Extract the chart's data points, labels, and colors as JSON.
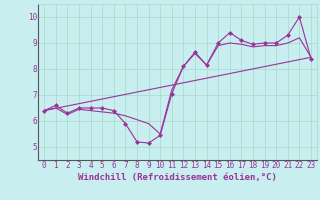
{
  "xlabel": "Windchill (Refroidissement éolien,°C)",
  "background_color": "#c8eef0",
  "line_color": "#993399",
  "xlim": [
    -0.5,
    23.5
  ],
  "ylim": [
    4.5,
    10.5
  ],
  "yticks": [
    5,
    6,
    7,
    8,
    9,
    10
  ],
  "xticks": [
    0,
    1,
    2,
    3,
    4,
    5,
    6,
    7,
    8,
    9,
    10,
    11,
    12,
    13,
    14,
    15,
    16,
    17,
    18,
    19,
    20,
    21,
    22,
    23
  ],
  "series1_x": [
    0,
    1,
    2,
    3,
    4,
    5,
    6,
    7,
    8,
    9,
    10,
    11,
    12,
    13,
    14,
    15,
    16,
    17,
    18,
    19,
    20,
    21,
    22,
    23
  ],
  "series1_y": [
    6.4,
    6.6,
    6.3,
    6.5,
    6.5,
    6.5,
    6.4,
    5.9,
    5.2,
    5.15,
    5.45,
    7.05,
    8.1,
    8.65,
    8.15,
    9.0,
    9.4,
    9.1,
    8.95,
    9.0,
    9.0,
    9.3,
    10.0,
    8.4
  ],
  "series2_x": [
    0,
    1,
    2,
    3,
    4,
    5,
    6,
    7,
    8,
    9,
    10,
    11,
    12,
    13,
    14,
    15,
    16,
    17,
    18,
    19,
    20,
    21,
    22,
    23
  ],
  "series2_y": [
    6.4,
    6.5,
    6.25,
    6.45,
    6.4,
    6.35,
    6.3,
    6.2,
    6.05,
    5.9,
    5.5,
    7.2,
    8.1,
    8.6,
    8.15,
    8.9,
    9.0,
    8.95,
    8.85,
    8.9,
    8.9,
    9.0,
    9.2,
    8.45
  ],
  "series3_x": [
    0,
    23
  ],
  "series3_y": [
    6.4,
    8.45
  ],
  "grid_color": "#aaddcc",
  "spine_color": "#9999bb",
  "tick_fontsize": 5.5,
  "label_fontsize": 6.5
}
